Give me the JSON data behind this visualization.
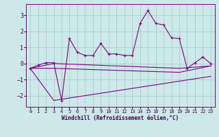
{
  "xlabel": "Windchill (Refroidissement éolien,°C)",
  "background_color": "#cce8e8",
  "grid_color": "#aacccc",
  "line_color": "#800080",
  "x_ticks": [
    0,
    1,
    2,
    3,
    4,
    5,
    6,
    7,
    8,
    9,
    10,
    11,
    12,
    13,
    14,
    15,
    16,
    17,
    18,
    19,
    20,
    21,
    22,
    23
  ],
  "ylim": [
    -2.7,
    3.7
  ],
  "xlim": [
    -0.5,
    23.5
  ],
  "y_ticks": [
    -2,
    -1,
    0,
    1,
    2,
    3
  ],
  "series1_x": [
    0,
    1,
    2,
    3,
    4,
    5,
    6,
    7,
    8,
    9,
    10,
    11,
    12,
    13,
    14,
    15,
    16,
    17,
    18,
    19,
    20,
    21,
    22,
    23
  ],
  "series1_y": [
    -0.3,
    -0.1,
    0.05,
    0.05,
    -2.3,
    1.55,
    0.7,
    0.5,
    0.5,
    1.25,
    0.6,
    0.6,
    0.5,
    0.5,
    2.5,
    3.3,
    2.5,
    2.4,
    1.6,
    1.55,
    -0.3,
    0.05,
    0.4,
    0.0
  ],
  "series2_x": [
    0,
    3,
    19,
    23
  ],
  "series2_y": [
    -0.3,
    0.0,
    -0.3,
    -0.15
  ],
  "series3_x": [
    0,
    3,
    23
  ],
  "series3_y": [
    -0.3,
    -2.3,
    -0.8
  ],
  "series4_x": [
    0,
    3,
    19,
    23
  ],
  "series4_y": [
    -0.3,
    -0.3,
    -0.55,
    -0.15
  ]
}
